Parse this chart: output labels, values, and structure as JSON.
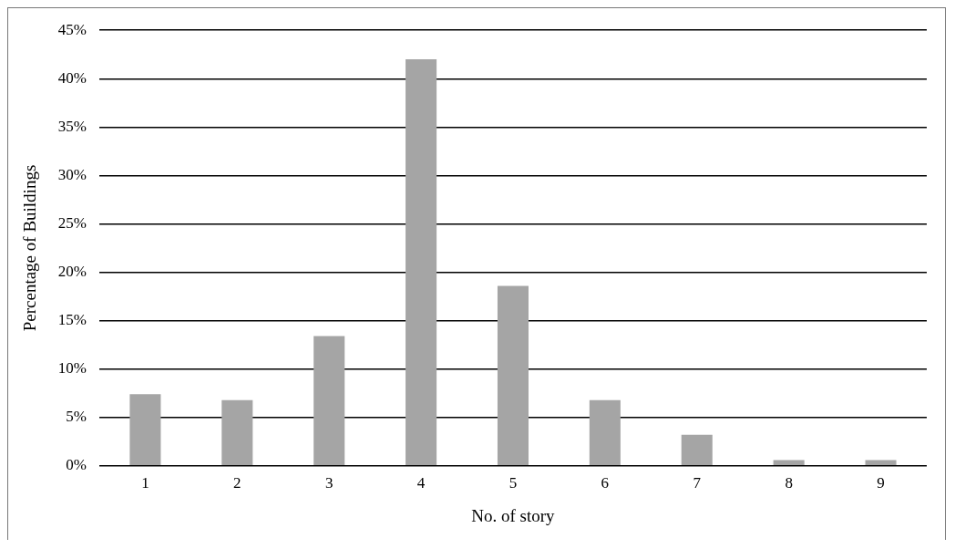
{
  "chart_data": {
    "type": "bar",
    "xlabel": "No. of story",
    "ylabel": "Percentage of Buildings",
    "categories": [
      "1",
      "2",
      "3",
      "4",
      "5",
      "6",
      "7",
      "8",
      "9"
    ],
    "values": [
      7.4,
      6.8,
      13.4,
      42,
      18.6,
      6.8,
      3.2,
      0.6,
      0.6
    ],
    "color": "#a5a5a5",
    "ylim": [
      0,
      45
    ],
    "yticks": [
      {
        "value": 0,
        "label": "0%"
      },
      {
        "value": 5,
        "label": "5%"
      },
      {
        "value": 10,
        "label": "10%"
      },
      {
        "value": 15,
        "label": "15%"
      },
      {
        "value": 20,
        "label": "20%"
      },
      {
        "value": 25,
        "label": "25%"
      },
      {
        "value": 30,
        "label": "30%"
      },
      {
        "value": 35,
        "label": "35%"
      },
      {
        "value": 40,
        "label": "40%"
      },
      {
        "value": 45,
        "label": "45%"
      }
    ],
    "grid": "y",
    "legend": false
  }
}
